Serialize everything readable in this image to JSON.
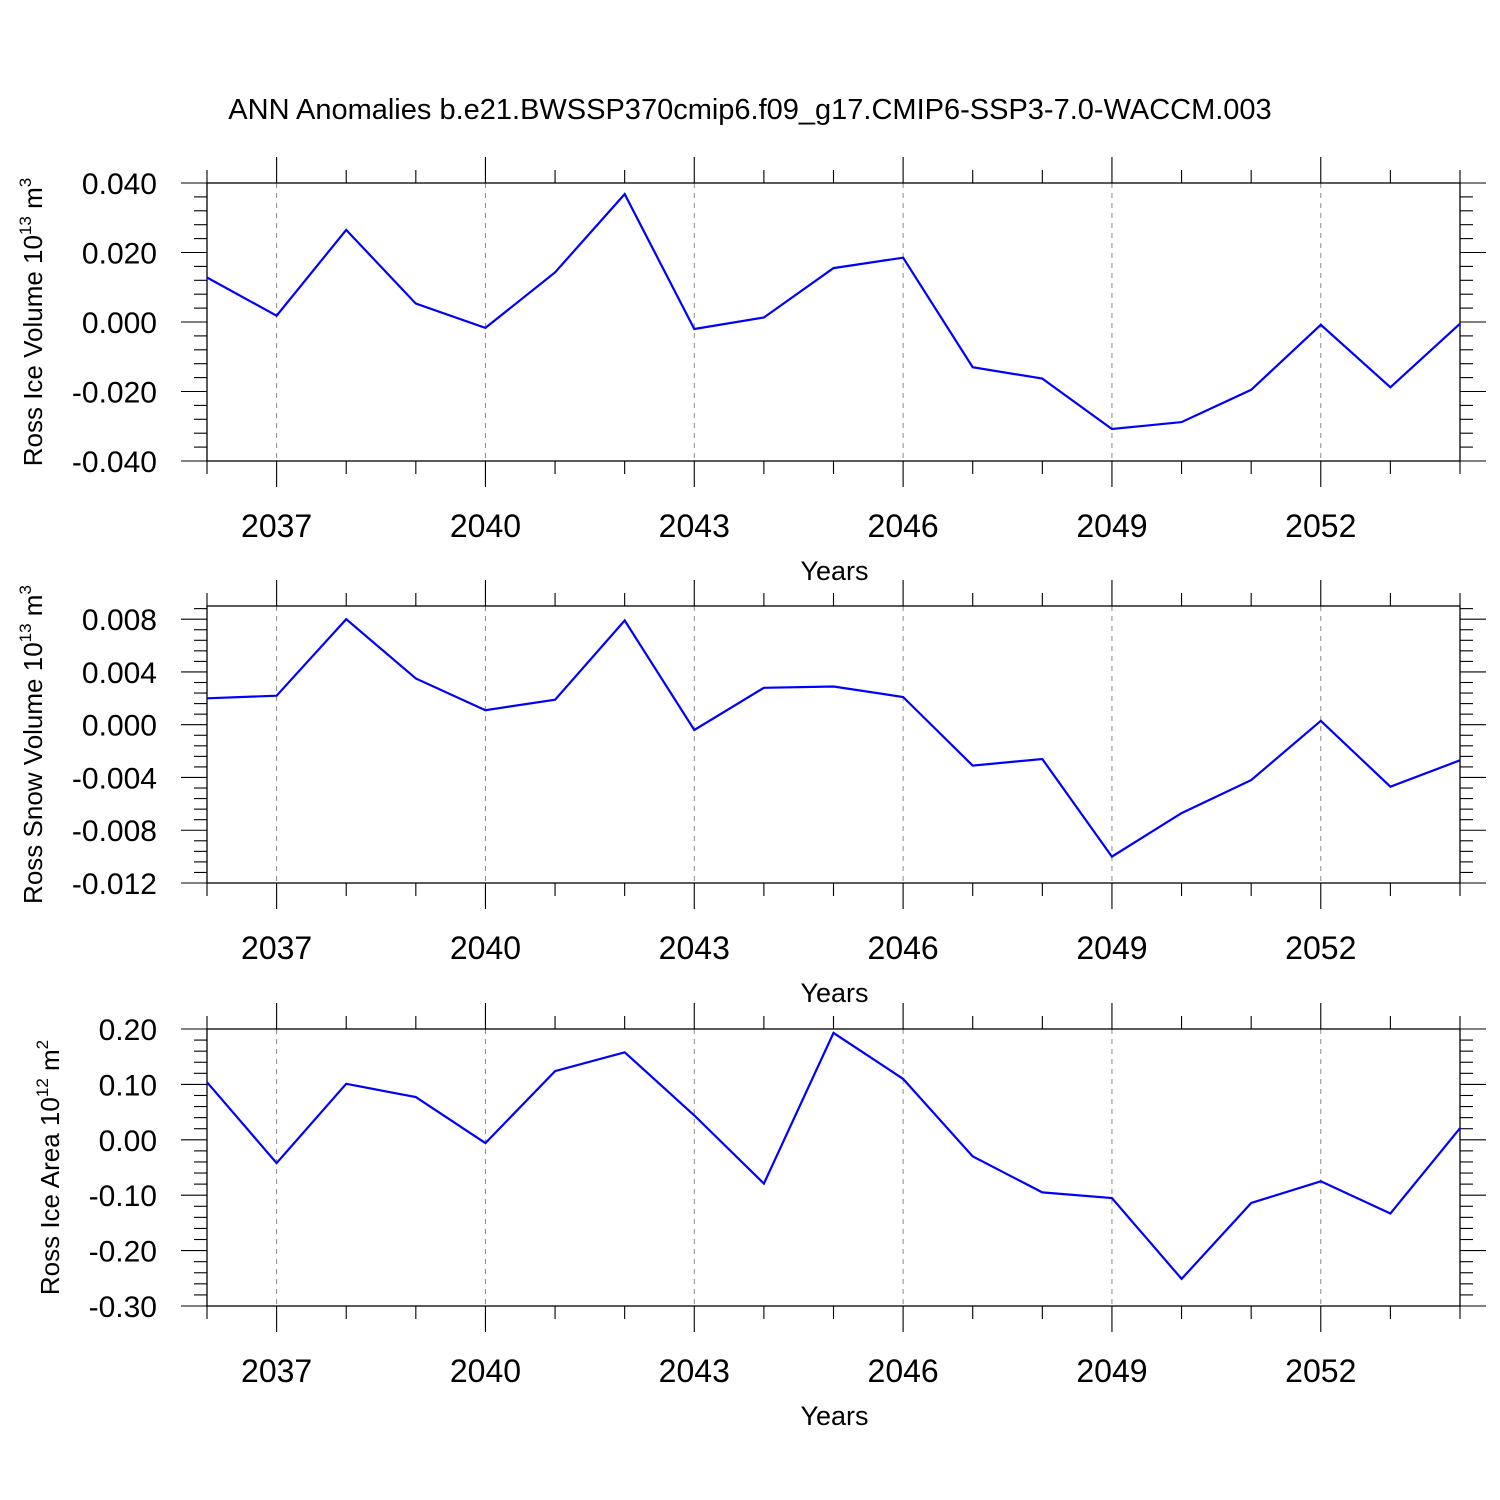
{
  "title": "ANN Anomalies b.e21.BWSSP370cmip6.f09_g17.CMIP6-SSP3-7.0-WACCM.003",
  "colors": {
    "line": "#0000ff",
    "grid": "#8a8a8a",
    "axes": "#000000"
  },
  "chart_data": [
    {
      "type": "line",
      "ylabel": {
        "text": "Ross Ice Volume 10",
        "sup1": "13",
        "unit": " m",
        "sup2": "3"
      },
      "xlabel": "Years",
      "xlim": [
        2036,
        2054
      ],
      "ylim": [
        -0.04,
        0.04
      ],
      "yticks": [
        "0.040",
        "0.020",
        "0.000",
        "-0.020",
        "-0.040"
      ],
      "yticks_values": [
        0.04,
        0.02,
        0.0,
        -0.02,
        -0.04
      ],
      "xticks": [
        "2037",
        "2040",
        "2043",
        "2046",
        "2049",
        "2052"
      ],
      "xticks_values": [
        2037,
        2040,
        2043,
        2046,
        2049,
        2052
      ],
      "grid": "vertical dashed at labeled years",
      "series": [
        {
          "x": [
            2036,
            2037,
            2038,
            2039,
            2040,
            2041,
            2042,
            2043,
            2044,
            2045,
            2046,
            2047,
            2048,
            2049,
            2050,
            2051,
            2052,
            2053,
            2054
          ],
          "values": [
            0.0128,
            0.0018,
            0.0265,
            0.0053,
            -0.0017,
            0.0143,
            0.0368,
            -0.002,
            0.0013,
            0.0155,
            0.0185,
            -0.013,
            -0.0163,
            -0.0308,
            -0.0288,
            -0.0195,
            -0.0008,
            -0.0188,
            -0.0005
          ]
        }
      ]
    },
    {
      "type": "line",
      "ylabel": {
        "text": "Ross Snow Volume 10",
        "sup1": "13",
        "unit": " m",
        "sup2": "3"
      },
      "xlabel": "Years",
      "xlim": [
        2036,
        2054
      ],
      "ylim": [
        -0.012,
        0.009
      ],
      "yticks": [
        "0.008",
        "0.004",
        "0.000",
        "-0.004",
        "-0.008",
        "-0.012"
      ],
      "yticks_values": [
        0.008,
        0.004,
        0.0,
        -0.004,
        -0.008,
        -0.012
      ],
      "xticks": [
        "2037",
        "2040",
        "2043",
        "2046",
        "2049",
        "2052"
      ],
      "xticks_values": [
        2037,
        2040,
        2043,
        2046,
        2049,
        2052
      ],
      "grid": "vertical dashed at labeled years",
      "series": [
        {
          "x": [
            2036,
            2037,
            2038,
            2039,
            2040,
            2041,
            2042,
            2043,
            2044,
            2045,
            2046,
            2047,
            2048,
            2049,
            2050,
            2051,
            2052,
            2053,
            2054
          ],
          "values": [
            0.002,
            0.0022,
            0.008,
            0.0035,
            0.0011,
            0.0019,
            0.0079,
            -0.0004,
            0.0028,
            0.0029,
            0.0021,
            -0.0031,
            -0.0026,
            -0.01,
            -0.0067,
            -0.0042,
            0.0003,
            -0.0047,
            -0.0027
          ]
        }
      ]
    },
    {
      "type": "line",
      "ylabel": {
        "text": "Ross Ice Area 10",
        "sup1": "12",
        "unit": " m",
        "sup2": "2"
      },
      "xlabel": "Years",
      "xlim": [
        2036,
        2054
      ],
      "ylim": [
        -0.3,
        0.2
      ],
      "yticks": [
        "0.20",
        "0.10",
        "0.00",
        "-0.10",
        "-0.20",
        "-0.30"
      ],
      "yticks_values": [
        0.2,
        0.1,
        0.0,
        -0.1,
        -0.2,
        -0.3
      ],
      "xticks": [
        "2037",
        "2040",
        "2043",
        "2046",
        "2049",
        "2052"
      ],
      "xticks_values": [
        2037,
        2040,
        2043,
        2046,
        2049,
        2052
      ],
      "grid": "vertical dashed at labeled years",
      "series": [
        {
          "x": [
            2036,
            2037,
            2038,
            2039,
            2040,
            2041,
            2042,
            2043,
            2044,
            2045,
            2046,
            2047,
            2048,
            2049,
            2050,
            2051,
            2052,
            2053,
            2054
          ],
          "values": [
            0.104,
            -0.042,
            0.101,
            0.077,
            -0.006,
            0.124,
            0.158,
            0.044,
            -0.079,
            0.193,
            0.11,
            -0.03,
            -0.095,
            -0.105,
            -0.251,
            -0.114,
            -0.075,
            -0.133,
            0.021
          ]
        }
      ]
    }
  ]
}
